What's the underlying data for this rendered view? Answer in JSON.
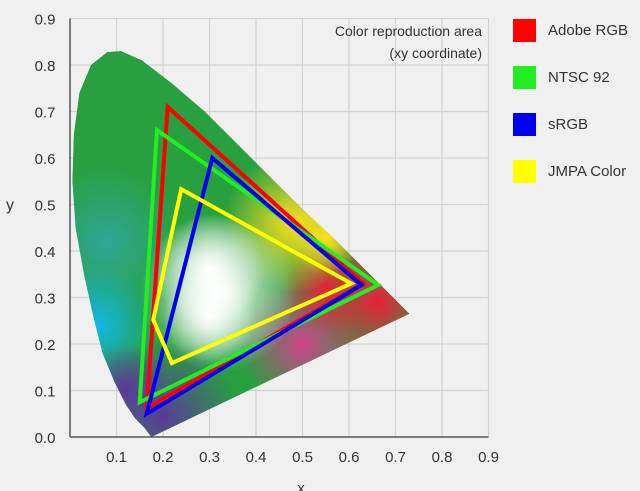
{
  "chart_data": {
    "type": "scatter",
    "title": "Color reproduction area",
    "subtitle": "(xy coordinate)",
    "xlabel": "x",
    "ylabel": "y",
    "xlim": [
      0,
      0.9
    ],
    "ylim": [
      0,
      0.9
    ],
    "grid": true,
    "xticks": [
      "0.1",
      "0.2",
      "0.3",
      "0.4",
      "0.5",
      "0.6",
      "0.7",
      "0.8",
      "0.9"
    ],
    "yticks": [
      "0.0",
      "0.1",
      "0.2",
      "0.3",
      "0.4",
      "0.5",
      "0.6",
      "0.7",
      "0.8",
      "0.9"
    ],
    "legend_position": "right",
    "spectral_locus": [
      [
        0.175,
        0.0
      ],
      [
        0.16,
        0.02
      ],
      [
        0.14,
        0.04
      ],
      [
        0.12,
        0.07
      ],
      [
        0.095,
        0.12
      ],
      [
        0.07,
        0.18
      ],
      [
        0.05,
        0.26
      ],
      [
        0.03,
        0.35
      ],
      [
        0.012,
        0.45
      ],
      [
        0.005,
        0.55
      ],
      [
        0.008,
        0.65
      ],
      [
        0.02,
        0.74
      ],
      [
        0.045,
        0.8
      ],
      [
        0.08,
        0.828
      ],
      [
        0.11,
        0.83
      ],
      [
        0.155,
        0.81
      ],
      [
        0.22,
        0.76
      ],
      [
        0.29,
        0.7
      ],
      [
        0.36,
        0.63
      ],
      [
        0.43,
        0.56
      ],
      [
        0.5,
        0.49
      ],
      [
        0.57,
        0.425
      ],
      [
        0.63,
        0.365
      ],
      [
        0.68,
        0.315
      ],
      [
        0.73,
        0.265
      ]
    ],
    "series": [
      {
        "name": "Adobe RGB",
        "color": "#ff0000",
        "points": [
          [
            0.21,
            0.71
          ],
          [
            0.63,
            0.33
          ],
          [
            0.165,
            0.062
          ]
        ]
      },
      {
        "name": "NTSC 92",
        "color": "#22ee22",
        "points": [
          [
            0.187,
            0.66
          ],
          [
            0.663,
            0.327
          ],
          [
            0.15,
            0.075
          ]
        ]
      },
      {
        "name": "sRGB",
        "color": "#0000ee",
        "points": [
          [
            0.306,
            0.6
          ],
          [
            0.627,
            0.327
          ],
          [
            0.165,
            0.05
          ]
        ]
      },
      {
        "name": "JMPA Color",
        "color": "#ffff00",
        "points": [
          [
            0.239,
            0.533
          ],
          [
            0.605,
            0.33
          ],
          [
            0.219,
            0.159
          ],
          [
            0.179,
            0.252
          ]
        ]
      }
    ]
  }
}
